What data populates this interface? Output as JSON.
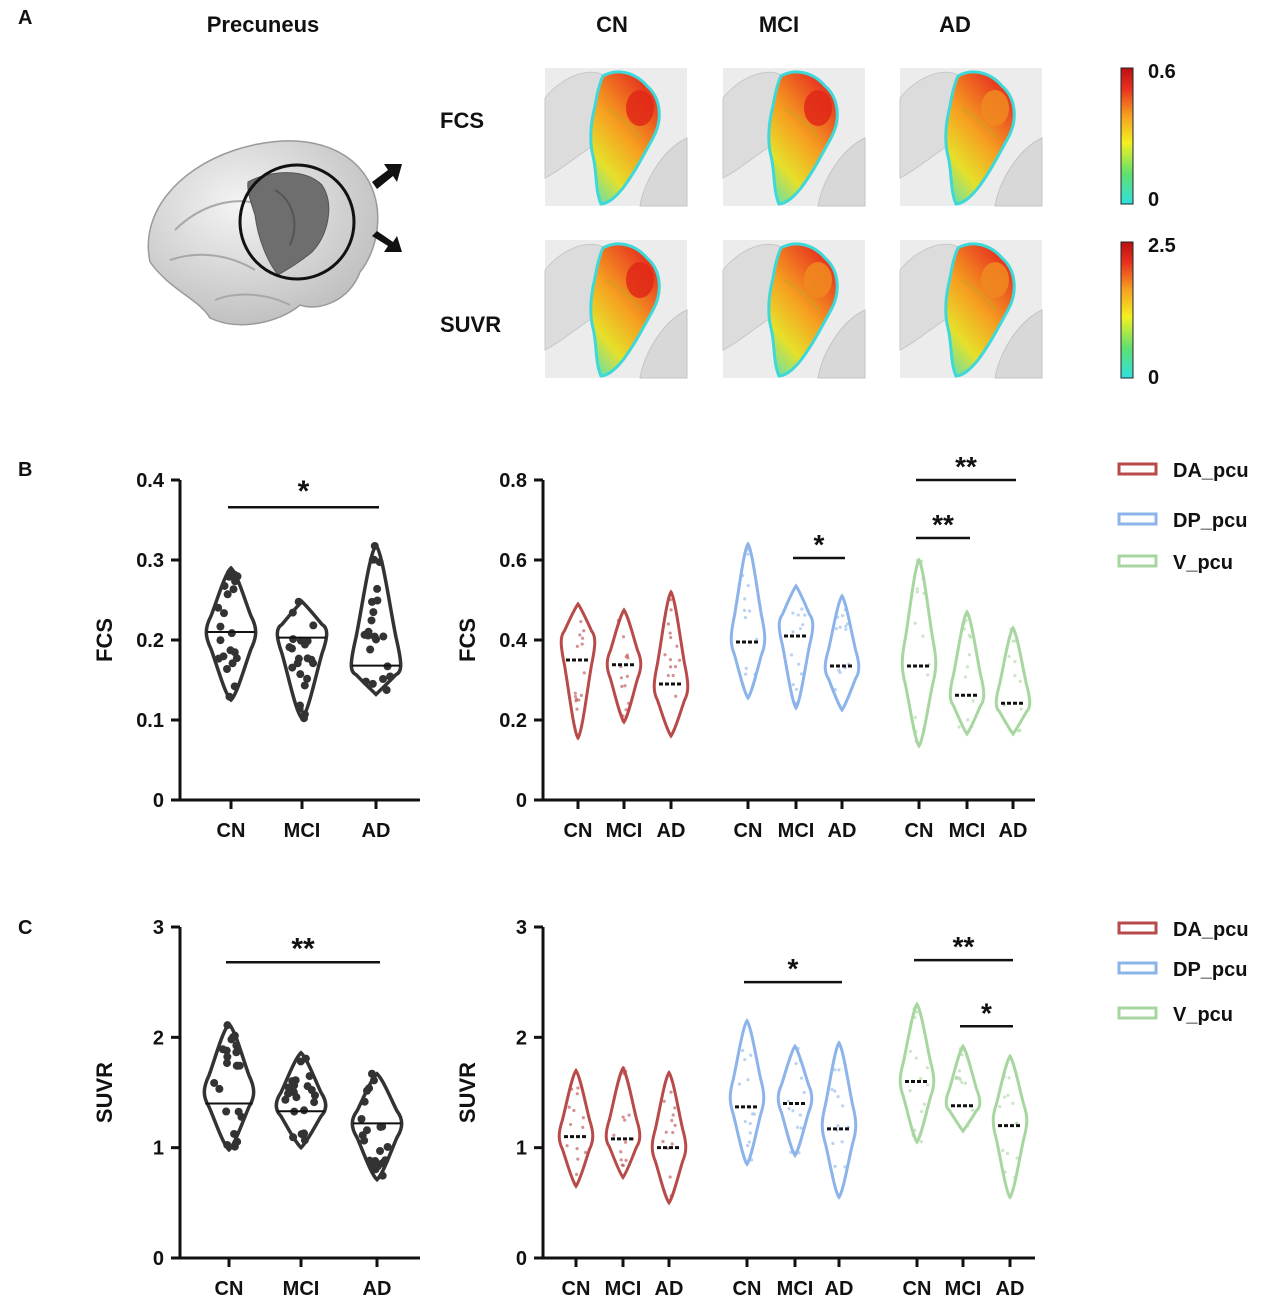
{
  "panel_labels": {
    "a": "A",
    "b": "B",
    "c": "C"
  },
  "panel_a": {
    "region_title": "Precuneus",
    "group_headers": [
      "CN",
      "MCI",
      "AD"
    ],
    "row_labels": [
      "FCS",
      "SUVR"
    ],
    "colorbars": [
      {
        "max_label": "0.6",
        "min_label": "0"
      },
      {
        "max_label": "2.5",
        "min_label": "0"
      }
    ],
    "colormap": [
      "#2fe0e0",
      "#5fe070",
      "#f4f020",
      "#f6a020",
      "#e83020",
      "#b81010"
    ]
  },
  "colors": {
    "dark": "#333333",
    "DA_pcu": "#b84a4a",
    "DP_pcu": "#8cb4ea",
    "V_pcu": "#a8d6a0"
  },
  "chart_data": [
    {
      "id": "B_left",
      "type": "violin",
      "ylabel": "FCS",
      "ylim": [
        0,
        0.4
      ],
      "yticks": [
        "0",
        "0.1",
        "0.2",
        "0.3",
        "0.4"
      ],
      "categories": [
        "CN",
        "MCI",
        "AD"
      ],
      "groups": [
        {
          "name": "CN",
          "min": 0.125,
          "max": 0.29,
          "median": 0.21,
          "peak": 0.21
        },
        {
          "name": "MCI",
          "min": 0.102,
          "max": 0.248,
          "median": 0.203,
          "peak": 0.21
        },
        {
          "name": "AD",
          "min": 0.132,
          "max": 0.318,
          "median": 0.168,
          "peak": 0.165
        }
      ],
      "significance": [
        {
          "from": "CN",
          "to": "AD",
          "label": "*",
          "y": 0.366
        }
      ]
    },
    {
      "id": "B_right",
      "type": "violin",
      "ylabel": "FCS",
      "ylim": [
        0,
        0.8
      ],
      "yticks": [
        "0",
        "0.2",
        "0.4",
        "0.6",
        "0.8"
      ],
      "categories": [
        "CN",
        "MCI",
        "AD",
        "CN",
        "MCI",
        "AD",
        "CN",
        "MCI",
        "AD"
      ],
      "series": [
        {
          "name": "DA_pcu",
          "groups": [
            {
              "name": "CN",
              "min": 0.155,
              "max": 0.49,
              "median": 0.35,
              "peak": 0.4
            },
            {
              "name": "MCI",
              "min": 0.195,
              "max": 0.475,
              "median": 0.338,
              "peak": 0.34
            },
            {
              "name": "AD",
              "min": 0.16,
              "max": 0.52,
              "median": 0.29,
              "peak": 0.28
            }
          ]
        },
        {
          "name": "DP_pcu",
          "groups": [
            {
              "name": "CN",
              "min": 0.255,
              "max": 0.64,
              "median": 0.395,
              "peak": 0.4
            },
            {
              "name": "MCI",
              "min": 0.23,
              "max": 0.535,
              "median": 0.41,
              "peak": 0.44
            },
            {
              "name": "AD",
              "min": 0.225,
              "max": 0.51,
              "median": 0.335,
              "peak": 0.33
            }
          ]
        },
        {
          "name": "V_pcu",
          "groups": [
            {
              "name": "CN",
              "min": 0.135,
              "max": 0.6,
              "median": 0.335,
              "peak": 0.34
            },
            {
              "name": "MCI",
              "min": 0.165,
              "max": 0.47,
              "median": 0.262,
              "peak": 0.26
            },
            {
              "name": "AD",
              "min": 0.165,
              "max": 0.43,
              "median": 0.242,
              "peak": 0.24
            }
          ]
        }
      ],
      "significance": [
        {
          "series": "DP_pcu",
          "from": "MCI",
          "to": "AD",
          "label": "*",
          "y": 0.605
        },
        {
          "series": "V_pcu",
          "from": "CN",
          "to": "MCI",
          "label": "**",
          "y": 0.655
        },
        {
          "series": "V_pcu",
          "from": "CN",
          "to": "AD",
          "label": "**",
          "y": 0.8
        }
      ],
      "legend": [
        "DA_pcu",
        "DP_pcu",
        "V_pcu"
      ]
    },
    {
      "id": "C_left",
      "type": "violin",
      "ylabel": "SUVR",
      "ylim": [
        0,
        3
      ],
      "yticks": [
        "0",
        "1",
        "2",
        "3"
      ],
      "categories": [
        "CN",
        "MCI",
        "AD"
      ],
      "groups": [
        {
          "name": "CN",
          "min": 0.98,
          "max": 2.12,
          "median": 1.4,
          "peak": 1.5
        },
        {
          "name": "MCI",
          "min": 1.0,
          "max": 1.86,
          "median": 1.33,
          "peak": 1.38
        },
        {
          "name": "AD",
          "min": 0.71,
          "max": 1.67,
          "median": 1.22,
          "peak": 1.22
        }
      ],
      "significance": [
        {
          "from": "CN",
          "to": "AD",
          "label": "**",
          "y": 2.68
        }
      ]
    },
    {
      "id": "C_right",
      "type": "violin",
      "ylabel": "SUVR",
      "ylim": [
        0,
        3
      ],
      "yticks": [
        "0",
        "1",
        "2",
        "3"
      ],
      "categories": [
        "CN",
        "MCI",
        "AD",
        "CN",
        "MCI",
        "AD",
        "CN",
        "MCI",
        "AD"
      ],
      "series": [
        {
          "name": "DA_pcu",
          "groups": [
            {
              "name": "CN",
              "min": 0.65,
              "max": 1.7,
              "median": 1.1,
              "peak": 1.1
            },
            {
              "name": "MCI",
              "min": 0.73,
              "max": 1.72,
              "median": 1.08,
              "peak": 1.1
            },
            {
              "name": "AD",
              "min": 0.5,
              "max": 1.68,
              "median": 1.0,
              "peak": 1.0
            }
          ]
        },
        {
          "name": "DP_pcu",
          "groups": [
            {
              "name": "CN",
              "min": 0.85,
              "max": 2.15,
              "median": 1.37,
              "peak": 1.45
            },
            {
              "name": "MCI",
              "min": 0.93,
              "max": 1.92,
              "median": 1.4,
              "peak": 1.45
            },
            {
              "name": "AD",
              "min": 0.55,
              "max": 1.95,
              "median": 1.17,
              "peak": 1.2
            }
          ]
        },
        {
          "name": "V_pcu",
          "groups": [
            {
              "name": "CN",
              "min": 1.05,
              "max": 2.3,
              "median": 1.6,
              "peak": 1.6
            },
            {
              "name": "MCI",
              "min": 1.15,
              "max": 1.92,
              "median": 1.38,
              "peak": 1.4
            },
            {
              "name": "AD",
              "min": 0.55,
              "max": 1.83,
              "median": 1.2,
              "peak": 1.25
            }
          ]
        }
      ],
      "significance": [
        {
          "series": "DP_pcu",
          "from": "CN",
          "to": "AD",
          "label": "*",
          "y": 2.5
        },
        {
          "series": "V_pcu",
          "from": "CN",
          "to": "AD",
          "label": "**",
          "y": 2.7
        },
        {
          "series": "V_pcu",
          "from": "MCI",
          "to": "AD",
          "label": "*",
          "y": 2.1
        }
      ],
      "legend": [
        "DA_pcu",
        "DP_pcu",
        "V_pcu"
      ]
    }
  ]
}
